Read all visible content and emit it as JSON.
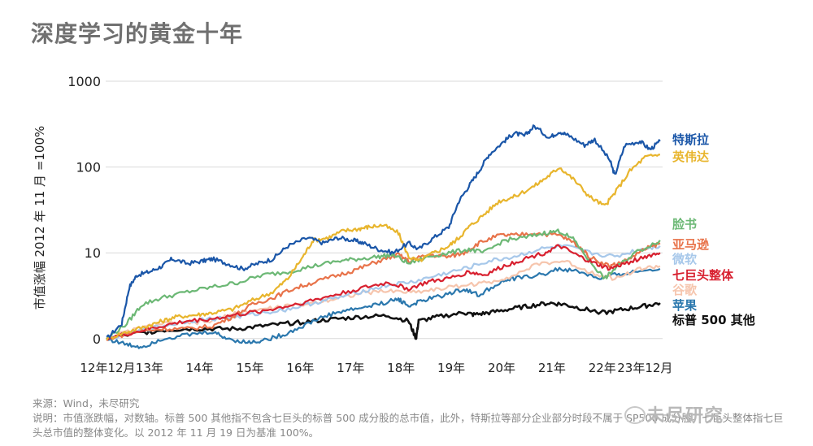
{
  "page_title": "深度学习的黄金十年",
  "chart_data": {
    "type": "line",
    "title": "深度学习的黄金十年",
    "ylabel": "市值涨幅 2012 年 11 月 =100%",
    "yscale": "log",
    "yticks": [
      {
        "label": "1000",
        "value": 1000
      },
      {
        "label": "100",
        "value": 100
      },
      {
        "label": "10",
        "value": 10
      },
      {
        "label": "0",
        "value": 1
      }
    ],
    "ylim": [
      0.75,
      1000
    ],
    "xlim": [
      2012.88,
      2023.95
    ],
    "xticks": [
      {
        "label": "12年12月",
        "value": 2012.92
      },
      {
        "label": "13年",
        "value": 2013.75
      },
      {
        "label": "14年",
        "value": 2014.75
      },
      {
        "label": "15年",
        "value": 2015.75
      },
      {
        "label": "16年",
        "value": 2016.75
      },
      {
        "label": "17年",
        "value": 2017.75
      },
      {
        "label": "18年",
        "value": 2018.75
      },
      {
        "label": "19年",
        "value": 2019.75
      },
      {
        "label": "20年",
        "value": 2020.75
      },
      {
        "label": "21年",
        "value": 2021.75
      },
      {
        "label": "22年",
        "value": 2022.75
      },
      {
        "label": "23年12月",
        "value": 2023.6
      }
    ],
    "grid": true,
    "series": [
      {
        "name": "特斯拉",
        "color": "#1a56a8",
        "x": [
          2012.9,
          2013.2,
          2013.35,
          2013.5,
          2013.75,
          2014.0,
          2014.2,
          2014.5,
          2014.8,
          2015.0,
          2015.3,
          2015.6,
          2015.9,
          2016.2,
          2016.5,
          2016.9,
          2017.2,
          2017.5,
          2017.8,
          2018.0,
          2018.3,
          2018.6,
          2018.9,
          2019.1,
          2019.4,
          2019.7,
          2019.9,
          2020.1,
          2020.3,
          2020.5,
          2020.8,
          2021.0,
          2021.2,
          2021.4,
          2021.7,
          2021.9,
          2022.1,
          2022.4,
          2022.6,
          2022.9,
          2023.0,
          2023.2,
          2023.5,
          2023.7,
          2023.9
        ],
        "y": [
          1.0,
          1.5,
          4.0,
          5.5,
          6.0,
          7.0,
          8.5,
          7.5,
          8.0,
          8.5,
          7.5,
          6.5,
          7.5,
          8.5,
          12.0,
          15.0,
          13.0,
          15.0,
          14.0,
          13.0,
          11.0,
          10.0,
          13.0,
          11.0,
          15.0,
          20.0,
          40.0,
          60.0,
          90.0,
          140.0,
          200.0,
          250.0,
          230.0,
          300.0,
          220.0,
          260.0,
          230.0,
          180.0,
          210.0,
          120.0,
          80.0,
          180.0,
          200.0,
          160.0,
          200.0
        ]
      },
      {
        "name": "英伟达",
        "color": "#e8b52d",
        "x": [
          2012.9,
          2013.3,
          2013.7,
          2014.0,
          2014.3,
          2014.7,
          2015.0,
          2015.4,
          2015.8,
          2016.2,
          2016.5,
          2016.8,
          2017.0,
          2017.3,
          2017.6,
          2017.9,
          2018.1,
          2018.4,
          2018.7,
          2018.9,
          2019.1,
          2019.4,
          2019.7,
          2019.9,
          2020.1,
          2020.4,
          2020.7,
          2021.0,
          2021.4,
          2021.7,
          2021.9,
          2022.2,
          2022.5,
          2022.8,
          2023.0,
          2023.3,
          2023.6,
          2023.9
        ],
        "y": [
          1.0,
          1.2,
          1.4,
          1.6,
          1.8,
          1.9,
          2.0,
          2.2,
          2.8,
          3.5,
          5.0,
          9.0,
          14.0,
          15.0,
          18.0,
          19.0,
          20.0,
          21.0,
          17.0,
          9.0,
          8.0,
          10.0,
          12.0,
          15.0,
          20.0,
          28.0,
          40.0,
          45.0,
          60.0,
          80.0,
          100.0,
          70.0,
          45.0,
          35.0,
          50.0,
          90.0,
          130.0,
          140.0
        ]
      },
      {
        "name": "脸书",
        "color": "#6cb875",
        "x": [
          2012.9,
          2013.3,
          2013.6,
          2014.0,
          2014.5,
          2015.0,
          2015.5,
          2016.0,
          2016.5,
          2017.0,
          2017.5,
          2017.9,
          2018.3,
          2018.6,
          2018.9,
          2019.3,
          2019.7,
          2020.1,
          2020.4,
          2020.8,
          2021.2,
          2021.6,
          2021.9,
          2022.2,
          2022.5,
          2022.8,
          2023.0,
          2023.4,
          2023.9
        ],
        "y": [
          1.0,
          1.5,
          2.5,
          3.0,
          3.5,
          4.0,
          4.5,
          5.5,
          6.0,
          7.0,
          8.0,
          8.5,
          9.0,
          9.5,
          7.5,
          9.0,
          10.0,
          11.0,
          10.0,
          14.0,
          15.0,
          17.0,
          18.0,
          14.0,
          8.0,
          5.0,
          6.5,
          10.0,
          14.0
        ]
      },
      {
        "name": "亚马逊",
        "color": "#e8734a",
        "x": [
          2012.9,
          2013.5,
          2014.0,
          2014.5,
          2015.0,
          2015.4,
          2015.8,
          2016.2,
          2016.6,
          2017.0,
          2017.5,
          2017.9,
          2018.3,
          2018.7,
          2018.9,
          2019.3,
          2019.7,
          2020.0,
          2020.3,
          2020.7,
          2021.0,
          2021.4,
          2021.9,
          2022.2,
          2022.5,
          2022.9,
          2023.2,
          2023.6,
          2023.9
        ],
        "y": [
          1.0,
          1.2,
          1.3,
          1.3,
          1.4,
          1.8,
          2.5,
          3.0,
          3.8,
          4.5,
          5.5,
          6.5,
          8.0,
          9.5,
          8.0,
          9.5,
          9.0,
          10.0,
          13.0,
          16.0,
          16.0,
          17.0,
          16.0,
          13.0,
          9.0,
          7.0,
          8.0,
          11.0,
          13.0
        ]
      },
      {
        "name": "微软",
        "color": "#a7c8ea",
        "x": [
          2012.9,
          2013.5,
          2014.0,
          2014.5,
          2015.0,
          2015.5,
          2016.0,
          2016.5,
          2017.0,
          2017.5,
          2018.0,
          2018.5,
          2019.0,
          2019.5,
          2020.0,
          2020.5,
          2021.0,
          2021.5,
          2022.0,
          2022.5,
          2023.0,
          2023.5,
          2023.9
        ],
        "y": [
          1.0,
          1.2,
          1.4,
          1.6,
          1.7,
          1.8,
          2.0,
          2.2,
          2.6,
          3.0,
          3.6,
          4.2,
          4.6,
          5.5,
          6.5,
          8.0,
          9.0,
          11.0,
          12.0,
          10.0,
          9.0,
          11.0,
          12.0
        ]
      },
      {
        "name": "七巨头整体",
        "color": "#d8202f",
        "x": [
          2012.9,
          2013.5,
          2014.0,
          2014.5,
          2015.0,
          2015.5,
          2016.0,
          2016.5,
          2017.0,
          2017.5,
          2018.0,
          2018.5,
          2018.9,
          2019.3,
          2019.7,
          2020.1,
          2020.4,
          2020.8,
          2021.2,
          2021.6,
          2021.9,
          2022.3,
          2022.6,
          2022.9,
          2023.2,
          2023.6,
          2023.9
        ],
        "y": [
          1.0,
          1.2,
          1.4,
          1.6,
          1.7,
          1.9,
          2.1,
          2.4,
          2.8,
          3.3,
          3.9,
          4.5,
          3.8,
          4.6,
          5.0,
          6.0,
          5.5,
          7.0,
          8.5,
          10.0,
          12.0,
          9.0,
          7.5,
          6.5,
          7.5,
          9.0,
          10.0
        ]
      },
      {
        "name": "谷歌",
        "color": "#f6c5ad",
        "x": [
          2012.9,
          2013.5,
          2014.0,
          2014.5,
          2015.0,
          2015.5,
          2016.0,
          2016.5,
          2017.0,
          2017.5,
          2018.0,
          2018.5,
          2019.0,
          2019.5,
          2020.0,
          2020.5,
          2021.0,
          2021.5,
          2022.0,
          2022.5,
          2023.0,
          2023.5,
          2023.9
        ],
        "y": [
          1.0,
          1.3,
          1.5,
          1.5,
          1.6,
          2.0,
          2.2,
          2.4,
          2.6,
          3.0,
          3.4,
          3.6,
          3.5,
          3.8,
          4.2,
          4.5,
          5.5,
          7.5,
          8.0,
          6.0,
          5.0,
          6.5,
          7.0
        ]
      },
      {
        "name": "苹果",
        "color": "#2a77ad",
        "x": [
          2012.9,
          2013.3,
          2013.6,
          2014.0,
          2014.5,
          2015.0,
          2015.3,
          2015.7,
          2016.0,
          2016.4,
          2016.8,
          2017.2,
          2017.6,
          2018.0,
          2018.4,
          2018.7,
          2018.9,
          2019.2,
          2019.6,
          2020.0,
          2020.3,
          2020.7,
          2021.0,
          2021.5,
          2021.9,
          2022.3,
          2022.7,
          2023.0,
          2023.4,
          2023.9
        ],
        "y": [
          1.0,
          0.85,
          0.8,
          1.0,
          1.1,
          1.2,
          1.0,
          0.9,
          0.95,
          1.1,
          1.4,
          1.8,
          2.1,
          2.3,
          2.6,
          2.9,
          2.4,
          2.8,
          3.2,
          3.8,
          3.2,
          4.5,
          5.0,
          5.5,
          6.5,
          6.0,
          5.0,
          5.5,
          6.0,
          6.5
        ]
      },
      {
        "name": "标普 500 其他",
        "color": "#111111",
        "x": [
          2012.9,
          2013.5,
          2014.0,
          2014.5,
          2015.0,
          2015.5,
          2016.0,
          2016.5,
          2017.0,
          2017.5,
          2018.0,
          2018.5,
          2018.9,
          2019.05,
          2019.1,
          2019.5,
          2020.0,
          2020.2,
          2020.5,
          2020.9,
          2021.3,
          2021.7,
          2022.0,
          2022.4,
          2022.8,
          2023.2,
          2023.6,
          2023.9
        ],
        "y": [
          1.0,
          1.15,
          1.25,
          1.3,
          1.3,
          1.3,
          1.4,
          1.5,
          1.6,
          1.7,
          1.8,
          1.85,
          1.6,
          1.0,
          1.6,
          1.8,
          2.0,
          1.9,
          2.0,
          2.2,
          2.4,
          2.6,
          2.5,
          2.2,
          2.0,
          2.2,
          2.4,
          2.6
        ]
      }
    ],
    "legend": [
      {
        "label": "特斯拉",
        "color": "#1a56a8"
      },
      {
        "label": "英伟达",
        "color": "#e8b52d"
      },
      {
        "label": "脸书",
        "color": "#6cb875"
      },
      {
        "label": "亚马逊",
        "color": "#e8734a"
      },
      {
        "label": "微软",
        "color": "#a7c8ea"
      },
      {
        "label": "七巨头整体",
        "color": "#d8202f"
      },
      {
        "label": "谷歌",
        "color": "#f6c5ad"
      },
      {
        "label": "苹果",
        "color": "#2a77ad"
      },
      {
        "label": "标普 500 其他",
        "color": "#111111"
      }
    ]
  },
  "footer": {
    "source": "来源：Wind，未尽研究",
    "note": "说明：市值涨跌幅，对数轴。标普 500 其他指不包含七巨头的标普 500 成分股的总市值，此外，特斯拉等部分企业部分时段不属于 SP500 成分股。七巨头整体指七巨头总市值的整体变化。以 2012 年 11 月 19 日为基准 100%。"
  },
  "watermark": "未尽研究"
}
